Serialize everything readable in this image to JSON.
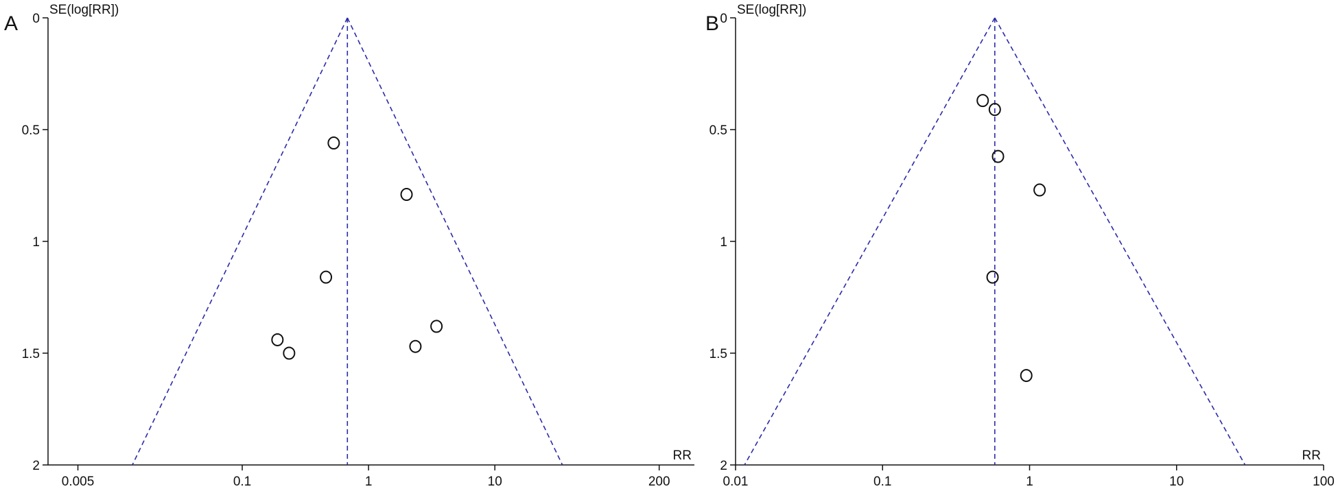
{
  "colors": {
    "axis": "#111111",
    "funnel": "#2a2aa8",
    "marker": "#111111"
  },
  "chart_data": [
    {
      "type": "scatter",
      "panel_label": "A",
      "ylabel": "SE(log[RR])",
      "xlabel": "RR",
      "x_scale": "log",
      "y_inverted": true,
      "xlim": [
        0.0029,
        380
      ],
      "ylim": [
        0,
        2
      ],
      "x_ticks": [
        "0.005",
        "0.1",
        "1",
        "10",
        "200"
      ],
      "y_ticks": [
        "0",
        "0.5",
        "1",
        "1.5",
        "2"
      ],
      "grid": false,
      "funnel": {
        "pooled_rr": 0.68,
        "ci_z": 1.96,
        "line_style": "dashed"
      },
      "points": [
        {
          "x": 0.53,
          "y": 0.56
        },
        {
          "x": 2.0,
          "y": 0.79
        },
        {
          "x": 0.46,
          "y": 1.16
        },
        {
          "x": 3.45,
          "y": 1.38
        },
        {
          "x": 0.19,
          "y": 1.44
        },
        {
          "x": 2.35,
          "y": 1.47
        },
        {
          "x": 0.235,
          "y": 1.5
        }
      ]
    },
    {
      "type": "scatter",
      "panel_label": "B",
      "ylabel": "SE(log[RR])",
      "xlabel": "RR",
      "x_scale": "log",
      "y_inverted": true,
      "xlim": [
        0.01,
        100
      ],
      "ylim": [
        0,
        2
      ],
      "x_ticks": [
        "0.01",
        "0.1",
        "1",
        "10",
        "100"
      ],
      "y_ticks": [
        "0",
        "0.5",
        "1",
        "1.5",
        "2"
      ],
      "grid": false,
      "funnel": {
        "pooled_rr": 0.58,
        "ci_z": 1.96,
        "line_style": "dashed"
      },
      "points": [
        {
          "x": 0.48,
          "y": 0.37
        },
        {
          "x": 0.58,
          "y": 0.41
        },
        {
          "x": 0.61,
          "y": 0.62
        },
        {
          "x": 1.17,
          "y": 0.77
        },
        {
          "x": 0.56,
          "y": 1.16
        },
        {
          "x": 0.95,
          "y": 1.6
        }
      ]
    }
  ]
}
